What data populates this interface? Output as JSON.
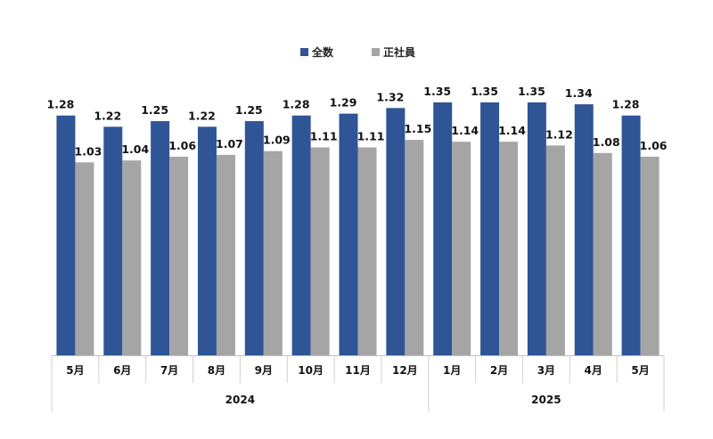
{
  "chart_data": {
    "type": "bar",
    "categories": [
      "5月",
      "6月",
      "7月",
      "8月",
      "9月",
      "10月",
      "11月",
      "12月",
      "1月",
      "2月",
      "3月",
      "4月",
      "5月"
    ],
    "year_groups": [
      {
        "label": "2024",
        "start": 0,
        "end": 7
      },
      {
        "label": "2025",
        "start": 8,
        "end": 12
      }
    ],
    "series": [
      {
        "name": "全数",
        "color": "#2F5597",
        "values": [
          1.28,
          1.22,
          1.25,
          1.22,
          1.25,
          1.28,
          1.29,
          1.32,
          1.35,
          1.35,
          1.35,
          1.34,
          1.28
        ]
      },
      {
        "name": "正社員",
        "color": "#A5A5A5",
        "values": [
          1.03,
          1.04,
          1.06,
          1.07,
          1.09,
          1.11,
          1.11,
          1.15,
          1.14,
          1.14,
          1.12,
          1.08,
          1.06
        ]
      }
    ],
    "ylim": [
      0,
      1.35
    ],
    "grid": false,
    "legend_position": "top-center",
    "data_labels": true
  }
}
